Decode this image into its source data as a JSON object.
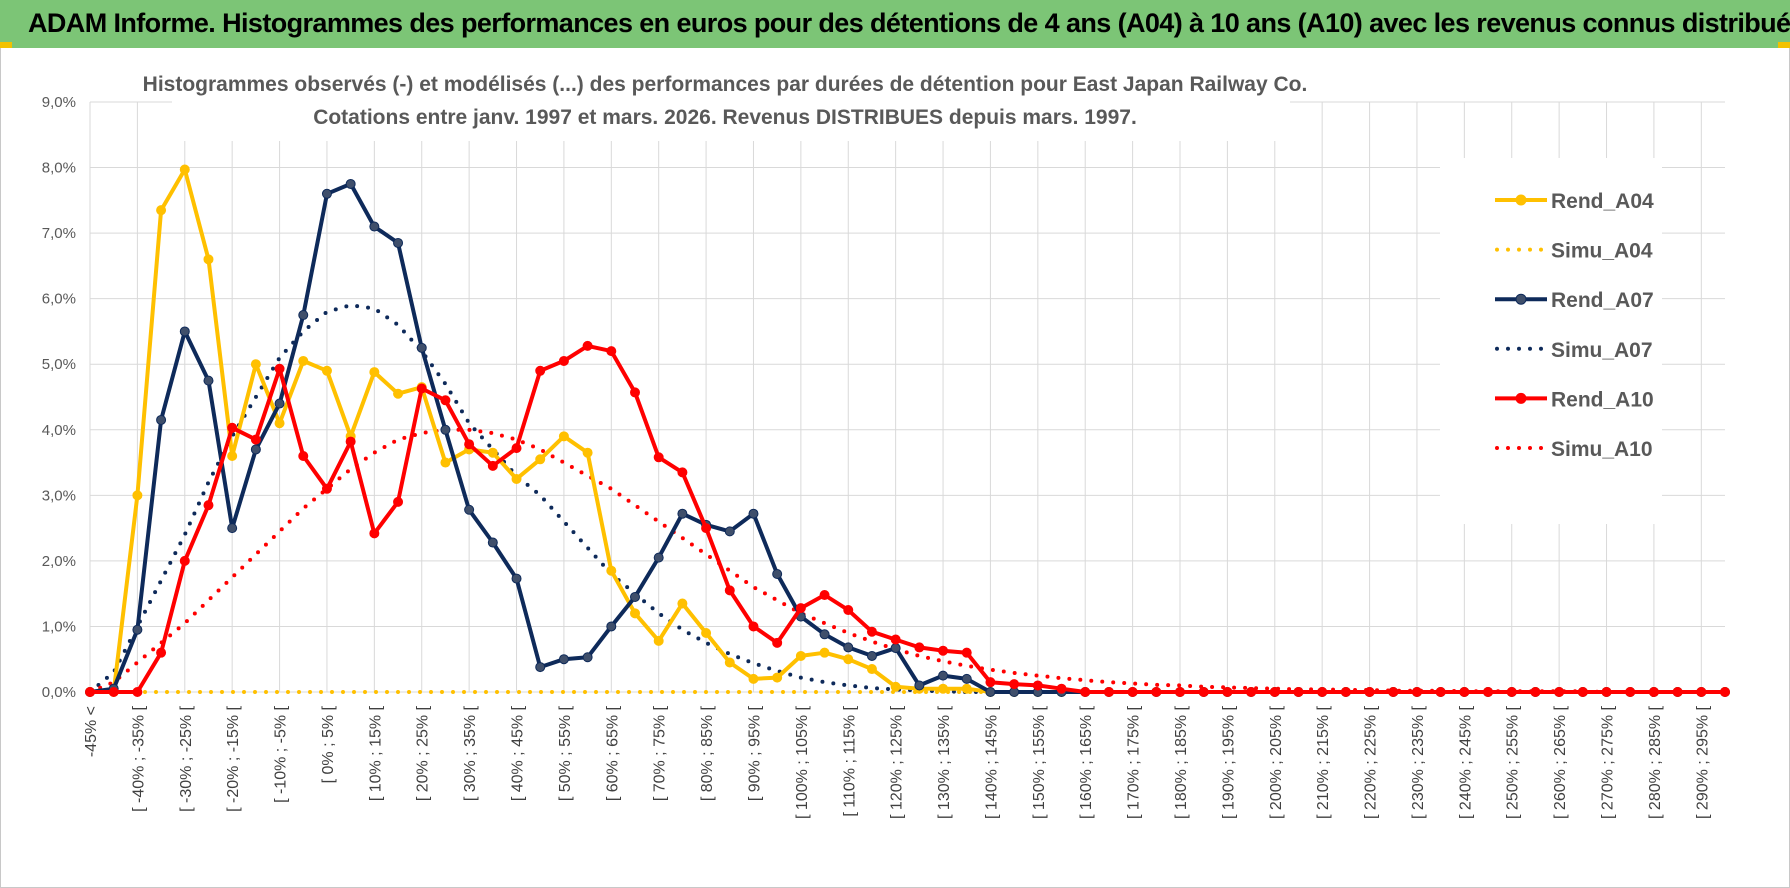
{
  "page": {
    "title": "ADAM Informe. Histogrammes des performances en euros pour des détentions de 4 ans (A04) à 10 ans (A10) avec les revenus connus distribués"
  },
  "colors": {
    "title_bar": "#7cc576",
    "A04": "#ffc000",
    "A07": "#0e2a5a",
    "A10": "#ff0000",
    "gridlines": "#d9d9d9"
  },
  "chart_data": {
    "type": "line",
    "title": "Histogrammes observés (-) et modélisés (...) des performances par durées de détention pour East Japan Railway Co.",
    "subtitle": "Cotations entre janv. 1997 et mars. 2026. Revenus DISTRIBUES depuis mars. 1997.",
    "xlabel": "",
    "ylabel": "",
    "ylim": [
      0,
      9
    ],
    "y_ticks": [
      "0,0%",
      "1,0%",
      "2,0%",
      "3,0%",
      "4,0%",
      "5,0%",
      "6,0%",
      "7,0%",
      "8,0%",
      "9,0%"
    ],
    "grid": true,
    "legend_position": "right",
    "x_labels": [
      "-45% <",
      "[ -40% ; -35% [",
      "[ -30% ; -25% [",
      "[ -20% ; -15% [",
      "[ -10% ; -5% [",
      "[ 0% ; 5% [",
      "[ 10% ; 15% [",
      "[ 20% ; 25% [",
      "[ 30% ; 35% [",
      "[ 40% ; 45% [",
      "[ 50% ; 55% [",
      "[ 60% ; 65% [",
      "[ 70% ; 75% [",
      "[ 80% ; 85% [",
      "[ 90% ; 95% [",
      "[ 100% ; 105% [",
      "[ 110% ; 115% [",
      "[ 120% ; 125% [",
      "[ 130% ; 135% [",
      "[ 140% ; 145% [",
      "[ 150% ; 155% [",
      "[ 160% ; 165% [",
      "[ 170% ; 175% [",
      "[ 180% ; 185% [",
      "[ 190% ; 195% [",
      "[ 200% ; 205% [",
      "[ 210% ; 215% [",
      "[ 220% ; 225% [",
      "[ 230% ; 235% [",
      "[ 240% ; 245% [",
      "[ 250% ; 255% [",
      "[ 260% ; 265% [",
      "[ 270% ; 275% [",
      "[ 280% ; 285% [",
      "[ 290% ; 295% ["
    ],
    "x_label_every": 2,
    "bins": 70,
    "series": [
      {
        "name": "Rend_A04",
        "key": "A04",
        "style": "solid",
        "markers": true,
        "values": [
          0,
          0,
          3.0,
          7.35,
          7.97,
          6.6,
          3.6,
          5.0,
          4.1,
          5.05,
          4.9,
          3.9,
          4.88,
          4.55,
          4.65,
          3.5,
          3.7,
          3.65,
          3.25,
          3.55,
          3.9,
          3.65,
          1.85,
          1.2,
          0.78,
          1.35,
          0.9,
          0.45,
          0.2,
          0.22,
          0.55,
          0.6,
          0.5,
          0.35,
          0.08,
          0.05,
          0.05,
          0.05,
          0,
          0,
          0,
          0,
          0,
          0,
          0,
          0,
          0,
          0,
          0,
          0,
          0,
          0,
          0,
          0,
          0,
          0,
          0,
          0,
          0,
          0,
          0,
          0,
          0,
          0,
          0,
          0,
          0,
          0,
          0,
          0
        ]
      },
      {
        "name": "Simu_A04",
        "key": "A04",
        "style": "dotted",
        "markers": false,
        "values": [
          0,
          0,
          0,
          0,
          0,
          0,
          0,
          0,
          0,
          0,
          0,
          0,
          0,
          0,
          0,
          0,
          0,
          0,
          0,
          0,
          0,
          0,
          0,
          0,
          0,
          0,
          0,
          0,
          0,
          0,
          0,
          0,
          0,
          0,
          0,
          0,
          0,
          0,
          0,
          0,
          0,
          0,
          0,
          0,
          0,
          0,
          0,
          0,
          0,
          0,
          0,
          0,
          0,
          0,
          0,
          0,
          0,
          0,
          0,
          0,
          0,
          0,
          0,
          0,
          0,
          0,
          0,
          0,
          0,
          0
        ]
      },
      {
        "name": "Rend_A07",
        "key": "A07",
        "style": "solid",
        "markers": true,
        "values": [
          0,
          0.05,
          0.95,
          4.15,
          5.5,
          4.75,
          2.5,
          3.7,
          4.4,
          5.75,
          7.6,
          7.75,
          7.1,
          6.85,
          5.25,
          4.0,
          2.78,
          2.28,
          1.73,
          0.38,
          0.5,
          0.53,
          1.0,
          1.45,
          2.05,
          2.72,
          2.55,
          2.45,
          2.72,
          1.8,
          1.15,
          0.88,
          0.68,
          0.55,
          0.67,
          0.1,
          0.25,
          0.2,
          0,
          0,
          0,
          0,
          0,
          0,
          0,
          0,
          0,
          0,
          0,
          0,
          0,
          0,
          0,
          0,
          0,
          0,
          0,
          0,
          0,
          0,
          0,
          0,
          0,
          0,
          0,
          0,
          0,
          0,
          0,
          0
        ]
      },
      {
        "name": "Simu_A07",
        "key": "A07",
        "style": "dotted",
        "markers": false,
        "values": [
          0,
          0.3,
          1.0,
          1.7,
          2.4,
          3.2,
          3.9,
          4.5,
          5.1,
          5.5,
          5.8,
          5.9,
          5.85,
          5.6,
          5.2,
          4.7,
          4.1,
          3.7,
          3.3,
          3.0,
          2.6,
          2.2,
          1.8,
          1.5,
          1.2,
          0.95,
          0.75,
          0.58,
          0.44,
          0.32,
          0.22,
          0.15,
          0.1,
          0.06,
          0.04,
          0.02,
          0.01,
          0,
          0,
          0,
          0,
          0,
          0,
          0,
          0,
          0,
          0,
          0,
          0,
          0,
          0,
          0,
          0,
          0,
          0,
          0,
          0,
          0,
          0,
          0,
          0,
          0,
          0,
          0,
          0,
          0,
          0,
          0,
          0,
          0
        ]
      },
      {
        "name": "Rend_A10",
        "key": "A10",
        "style": "solid",
        "markers": true,
        "values": [
          0,
          0,
          0,
          0.6,
          2.0,
          2.85,
          4.03,
          3.85,
          4.93,
          3.6,
          3.1,
          3.82,
          2.42,
          2.9,
          4.63,
          4.45,
          3.78,
          3.45,
          3.72,
          4.9,
          5.05,
          5.28,
          5.2,
          4.57,
          3.58,
          3.35,
          2.5,
          1.55,
          1.0,
          0.75,
          1.28,
          1.48,
          1.25,
          0.92,
          0.8,
          0.68,
          0.63,
          0.6,
          0.15,
          0.12,
          0.1,
          0.05,
          0,
          0,
          0,
          0,
          0,
          0,
          0,
          0,
          0,
          0,
          0,
          0,
          0,
          0,
          0,
          0,
          0,
          0,
          0,
          0,
          0,
          0,
          0,
          0,
          0,
          0,
          0,
          0
        ]
      },
      {
        "name": "Simu_A10",
        "key": "A10",
        "style": "dotted",
        "markers": false,
        "values": [
          0,
          0.15,
          0.45,
          0.75,
          1.05,
          1.4,
          1.75,
          2.1,
          2.45,
          2.8,
          3.1,
          3.4,
          3.65,
          3.85,
          3.95,
          4.0,
          4.0,
          3.95,
          3.85,
          3.7,
          3.5,
          3.3,
          3.1,
          2.85,
          2.6,
          2.35,
          2.1,
          1.85,
          1.6,
          1.4,
          1.2,
          1.05,
          0.9,
          0.77,
          0.65,
          0.55,
          0.47,
          0.4,
          0.34,
          0.29,
          0.25,
          0.21,
          0.18,
          0.15,
          0.13,
          0.11,
          0.1,
          0.08,
          0.07,
          0.06,
          0.05,
          0.04,
          0.04,
          0.03,
          0.03,
          0.02,
          0.02,
          0.02,
          0.01,
          0.01,
          0.01,
          0.01,
          0.01,
          0.01,
          0,
          0,
          0,
          0,
          0,
          0
        ]
      }
    ]
  }
}
